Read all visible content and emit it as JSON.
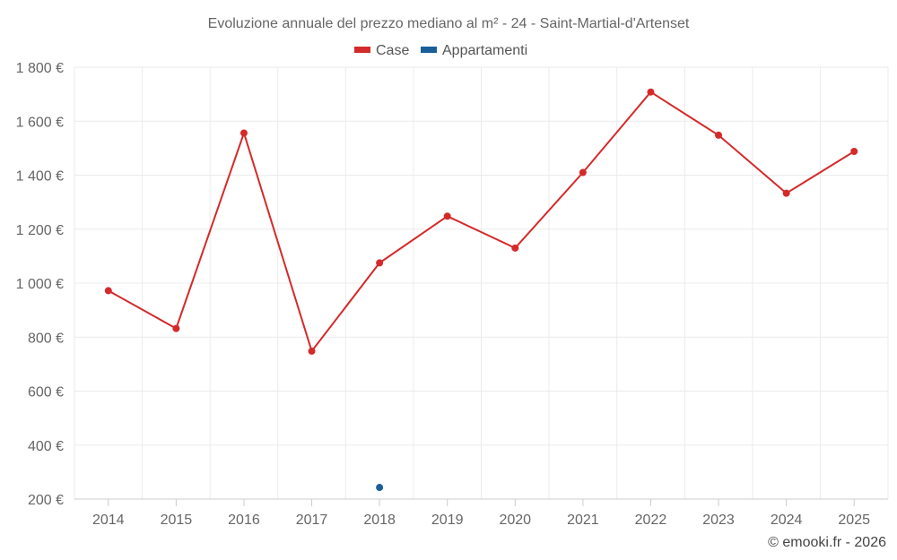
{
  "chart_data": {
    "type": "line",
    "title": "Evoluzione annuale del prezzo mediano al m² - 24 - Saint-Martial-d'Artenset",
    "xlabel": "",
    "ylabel": "",
    "categories": [
      "2014",
      "2015",
      "2016",
      "2017",
      "2018",
      "2019",
      "2020",
      "2021",
      "2022",
      "2023",
      "2024",
      "2025"
    ],
    "ylim": [
      200,
      1800
    ],
    "yticks": [
      200,
      400,
      600,
      800,
      1000,
      1200,
      1400,
      1600,
      1800
    ],
    "ytick_labels": [
      "200 €",
      "400 €",
      "600 €",
      "800 €",
      "1 000 €",
      "1 200 €",
      "1 400 €",
      "1 600 €",
      "1 800 €"
    ],
    "grid": true,
    "legend_position": "top-center",
    "series": [
      {
        "name": "Case",
        "color": "#d42a2a",
        "values": [
          972,
          832,
          1556,
          748,
          1075,
          1248,
          1130,
          1410,
          1708,
          1548,
          1333,
          1488
        ]
      },
      {
        "name": "Appartamenti",
        "color": "#1a5f9a",
        "values": [
          null,
          null,
          null,
          null,
          243,
          null,
          null,
          null,
          null,
          null,
          null,
          null
        ]
      }
    ]
  },
  "credit": "© emooki.fr - 2026"
}
